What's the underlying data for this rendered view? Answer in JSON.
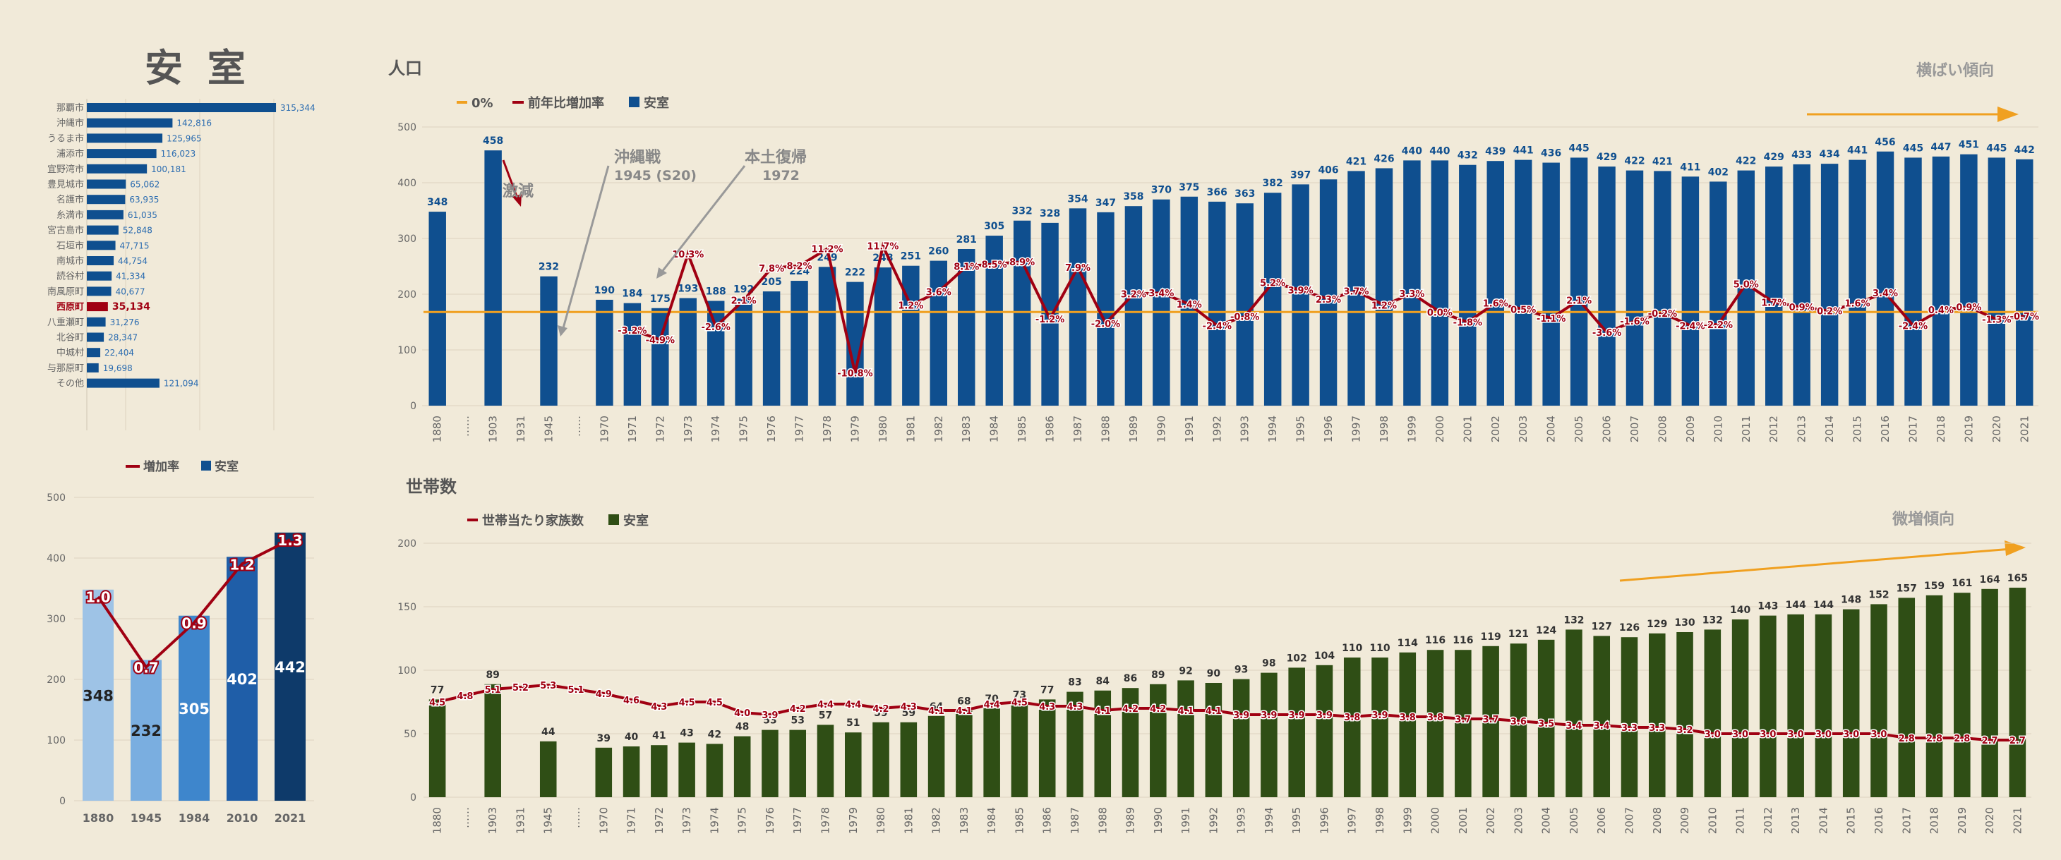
{
  "page_title": "安 室",
  "colors": {
    "background": "#f1ead9",
    "pop_bar": "#0f4f8f",
    "pop_line": "#a00012",
    "zero_line": "#f0a020",
    "hh_bar": "#2f4e15",
    "hh_line": "#a00012",
    "trend_arrow": "#f0a020",
    "highlight_bar": "#a00012",
    "small_bars": [
      "#9ec3e6",
      "#7aaee0",
      "#3e86cc",
      "#1f5ea8",
      "#0e3a6a"
    ]
  },
  "chart_data": [
    {
      "id": "ranking",
      "type": "bar",
      "orientation": "horizontal",
      "categories": [
        "那覇市",
        "沖縄市",
        "うるま市",
        "浦添市",
        "宜野湾市",
        "豊見城市",
        "名護市",
        "糸満市",
        "宮古島市",
        "石垣市",
        "南城市",
        "読谷村",
        "南風原町",
        "西原町",
        "八重瀬町",
        "北谷町",
        "中城村",
        "与那原町",
        "その他"
      ],
      "values": [
        315344,
        142816,
        125965,
        116023,
        100181,
        65062,
        63935,
        61035,
        52848,
        47715,
        44754,
        41334,
        40677,
        35134,
        31276,
        28347,
        22404,
        19698,
        121094
      ],
      "value_labels": [
        "315,344",
        "142,816",
        "125,965",
        "116,023",
        "100,181",
        "65,062",
        "63,935",
        "61,035",
        "52,848",
        "47,715",
        "44,754",
        "41,334",
        "40,677",
        "35,134",
        "31,276",
        "28,347",
        "22,404",
        "19,698",
        "121,094"
      ],
      "highlight": "西原町",
      "xlim": [
        0,
        400000
      ]
    },
    {
      "id": "small",
      "type": "bar",
      "legend": [
        "増加率",
        "安室"
      ],
      "categories": [
        "1880",
        "1945",
        "1984",
        "2010",
        "2021"
      ],
      "values": [
        348,
        232,
        305,
        402,
        442
      ],
      "rates": [
        1.0,
        0.7,
        0.9,
        1.2,
        1.3
      ],
      "rate_labels": [
        "1.0",
        "0.7",
        "0.9",
        "1.2",
        "1.3"
      ],
      "yticks": [
        0,
        100,
        200,
        300,
        400,
        500
      ],
      "ylim": [
        0,
        500
      ]
    },
    {
      "id": "population",
      "type": "bar",
      "title": "人口",
      "legend": [
        "0%",
        "前年比増加率",
        "安室"
      ],
      "trend_label": "横ばい傾向",
      "categories": [
        "1880",
        "",
        "1903",
        "",
        "1945",
        "",
        "1970",
        "1971",
        "1972",
        "1973",
        "1974",
        "1975",
        "1976",
        "1977",
        "1978",
        "1979",
        "1980",
        "1981",
        "1982",
        "1983",
        "1984",
        "1985",
        "1986",
        "1987",
        "1988",
        "1989",
        "1990",
        "1991",
        "1992",
        "1993",
        "1994",
        "1995",
        "1996",
        "1997",
        "1998",
        "1999",
        "2000",
        "2001",
        "2002",
        "2003",
        "2004",
        "2005",
        "2006",
        "2007",
        "2008",
        "2009",
        "2010",
        "2011",
        "2012",
        "2013",
        "2014",
        "2015",
        "2016",
        "2017",
        "2018",
        "2019",
        "2020",
        "2021"
      ],
      "tick_labels": [
        "1880",
        "……",
        "1903",
        "1931",
        "1945",
        "……",
        "1970",
        "1971",
        "1972",
        "1973",
        "1974",
        "1975",
        "1976",
        "1977",
        "1978",
        "1979",
        "1980",
        "1981",
        "1982",
        "1983",
        "1984",
        "1985",
        "1986",
        "1987",
        "1988",
        "1989",
        "1990",
        "1991",
        "1992",
        "1993",
        "1994",
        "1995",
        "1996",
        "1997",
        "1998",
        "1999",
        "2000",
        "2001",
        "2002",
        "2003",
        "2004",
        "2005",
        "2006",
        "2007",
        "2008",
        "2009",
        "2010",
        "2011",
        "2012",
        "2013",
        "2014",
        "2015",
        "2016",
        "2017",
        "2018",
        "2019",
        "2020",
        "2021"
      ],
      "values": [
        348,
        null,
        458,
        null,
        232,
        null,
        190,
        184,
        175,
        193,
        188,
        192,
        205,
        224,
        249,
        222,
        248,
        251,
        260,
        281,
        305,
        332,
        328,
        354,
        347,
        358,
        370,
        375,
        366,
        363,
        382,
        397,
        406,
        421,
        426,
        440,
        440,
        432,
        439,
        441,
        436,
        445,
        429,
        422,
        421,
        411,
        402,
        422,
        429,
        433,
        434,
        441,
        456,
        445,
        447,
        451,
        445,
        442
      ],
      "growth": [
        null,
        null,
        null,
        null,
        null,
        null,
        null,
        -3.2,
        -4.9,
        10.3,
        -2.6,
        2.1,
        7.8,
        8.2,
        11.2,
        -10.8,
        11.7,
        1.2,
        3.6,
        8.1,
        8.5,
        8.9,
        -1.2,
        7.9,
        -2.0,
        3.2,
        3.4,
        1.4,
        -2.4,
        -0.8,
        5.2,
        3.9,
        2.3,
        3.7,
        1.2,
        3.3,
        0.0,
        -1.8,
        1.6,
        0.5,
        -1.1,
        2.1,
        -3.6,
        -1.6,
        -0.2,
        -2.4,
        -2.2,
        5.0,
        1.7,
        0.9,
        0.2,
        1.6,
        3.4,
        -2.4,
        0.4,
        0.9,
        -1.3,
        -0.7
      ],
      "growth_labels": [
        null,
        null,
        null,
        null,
        null,
        null,
        null,
        "-3.2%",
        "-4.9%",
        "10.3%",
        "-2.6%",
        "2.1%",
        "7.8%",
        "8.2%",
        "11.2%",
        "-10.8%",
        "11.7%",
        "1.2%",
        "3.6%",
        "8.1%",
        "8.5%",
        "8.9%",
        "-1.2%",
        "7.9%",
        "-2.0%",
        "3.2%",
        "3.4%",
        "1.4%",
        "-2.4%",
        "-0.8%",
        "5.2%",
        "3.9%",
        "2.3%",
        "3.7%",
        "1.2%",
        "3.3%",
        "0.0%",
        "-1.8%",
        "1.6%",
        "0.5%",
        "-1.1%",
        "2.1%",
        "-3.6%",
        "-1.6%",
        "-0.2%",
        "-2.4%",
        "-2.2%",
        "5.0%",
        "1.7%",
        "0.9%",
        "0.2%",
        "1.6%",
        "3.4%",
        "-2.4%",
        "0.4%",
        "0.9%",
        "-1.3%",
        "-0.7%"
      ],
      "yticks": [
        0,
        100,
        200,
        300,
        400,
        500
      ],
      "ylim": [
        0,
        500
      ],
      "annotations": [
        {
          "text": "激減",
          "sub": ""
        },
        {
          "text": "沖縄戦",
          "sub": "1945 (S20)"
        },
        {
          "text": "本土復帰",
          "sub": "1972"
        }
      ]
    },
    {
      "id": "households",
      "type": "bar",
      "title": "世帯数",
      "legend": [
        "世帯当たり家族数",
        "安室"
      ],
      "trend_label": "微増傾向",
      "categories": [
        "1880",
        "",
        "1903",
        "",
        "1945",
        "",
        "1970",
        "1971",
        "1972",
        "1973",
        "1974",
        "1975",
        "1976",
        "1977",
        "1978",
        "1979",
        "1980",
        "1981",
        "1982",
        "1983",
        "1984",
        "1985",
        "1986",
        "1987",
        "1988",
        "1989",
        "1990",
        "1991",
        "1992",
        "1993",
        "1994",
        "1995",
        "1996",
        "1997",
        "1998",
        "1999",
        "2000",
        "2001",
        "2002",
        "2003",
        "2004",
        "2005",
        "2006",
        "2007",
        "2008",
        "2009",
        "2010",
        "2011",
        "2012",
        "2013",
        "2014",
        "2015",
        "2016",
        "2017",
        "2018",
        "2019",
        "2020",
        "2021"
      ],
      "tick_labels": [
        "1880",
        "……",
        "1903",
        "1931",
        "1945",
        "……",
        "1970",
        "1971",
        "1972",
        "1973",
        "1974",
        "1975",
        "1976",
        "1977",
        "1978",
        "1979",
        "1980",
        "1981",
        "1982",
        "1983",
        "1984",
        "1985",
        "1986",
        "1987",
        "1988",
        "1989",
        "1990",
        "1991",
        "1992",
        "1993",
        "1994",
        "1995",
        "1996",
        "1997",
        "1998",
        "1999",
        "2000",
        "2001",
        "2002",
        "2003",
        "2004",
        "2005",
        "2006",
        "2007",
        "2008",
        "2009",
        "2010",
        "2011",
        "2012",
        "2013",
        "2014",
        "2015",
        "2016",
        "2017",
        "2018",
        "2019",
        "2020",
        "2021"
      ],
      "values": [
        77,
        null,
        89,
        null,
        44,
        null,
        39,
        40,
        41,
        43,
        42,
        48,
        53,
        53,
        57,
        51,
        59,
        59,
        64,
        68,
        70,
        73,
        77,
        83,
        84,
        86,
        89,
        92,
        90,
        93,
        98,
        102,
        104,
        110,
        110,
        114,
        116,
        116,
        119,
        121,
        124,
        132,
        127,
        126,
        129,
        130,
        132,
        140,
        143,
        144,
        144,
        148,
        152,
        157,
        159,
        161,
        164,
        165
      ],
      "family_size": [
        4.5,
        4.8,
        5.1,
        5.2,
        5.3,
        5.1,
        4.9,
        4.6,
        4.3,
        4.5,
        4.5,
        4.0,
        3.9,
        4.2,
        4.4,
        4.4,
        4.2,
        4.3,
        4.1,
        4.1,
        4.4,
        4.5,
        4.3,
        4.3,
        4.1,
        4.2,
        4.2,
        4.1,
        4.1,
        3.9,
        3.9,
        3.9,
        3.9,
        3.8,
        3.9,
        3.8,
        3.8,
        3.7,
        3.7,
        3.6,
        3.5,
        3.4,
        3.4,
        3.3,
        3.3,
        3.2,
        3.0,
        3.0,
        3.0,
        3.0,
        3.0,
        3.0,
        3.0,
        2.8,
        2.8,
        2.8,
        2.7,
        2.7
      ],
      "family_labels": [
        "4.5",
        "4.8",
        "5.1",
        "5.2",
        "5.3",
        "5.1",
        "4.9",
        "4.6",
        "4.3",
        "4.5",
        "4.5",
        "4.0",
        "3.9",
        "4.2",
        "4.4",
        "4.4",
        "4.2",
        "4.3",
        "4.1",
        "4.1",
        "4.4",
        "4.5",
        "4.3",
        "4.3",
        "4.1",
        "4.2",
        "4.2",
        "4.1",
        "4.1",
        "3.9",
        "3.9",
        "3.9",
        "3.9",
        "3.8",
        "3.9",
        "3.8",
        "3.8",
        "3.7",
        "3.7",
        "3.6",
        "3.5",
        "3.4",
        "3.4",
        "3.3",
        "3.3",
        "3.2",
        "3.0",
        "3.0",
        "3.0",
        "3.0",
        "3.0",
        "3.0",
        "3.0",
        "2.8",
        "2.8",
        "2.8",
        "2.7",
        "2.7"
      ],
      "yticks": [
        0,
        50,
        100,
        150,
        200
      ],
      "ylim": [
        0,
        200
      ]
    }
  ]
}
